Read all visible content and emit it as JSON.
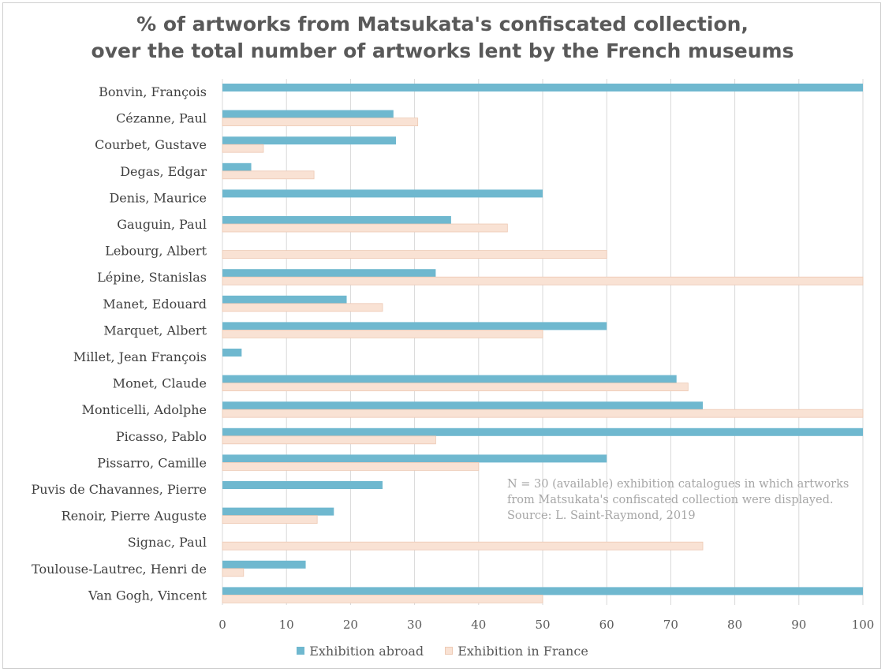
{
  "chart_data": {
    "type": "bar",
    "orientation": "horizontal",
    "title": "% of artworks from Matsukata's confiscated collection, over the total number of artworks lent by the French museums",
    "title_lines": [
      "% of artworks from Matsukata's confiscated collection,",
      "over the total number of artworks lent by the French museums"
    ],
    "categories": [
      "Bonvin, François",
      "Cézanne, Paul",
      "Courbet, Gustave",
      "Degas, Edgar",
      "Denis, Maurice",
      "Gauguin, Paul",
      "Lebourg, Albert",
      "Lépine, Stanislas",
      "Manet, Edouard",
      "Marquet, Albert",
      "Millet, Jean François",
      "Monet, Claude",
      "Monticelli, Adolphe",
      "Picasso, Pablo",
      "Pissarro, Camille",
      "Puvis de Chavannes, Pierre",
      "Renoir, Pierre Auguste",
      "Signac, Paul",
      "Toulouse-Lautrec, Henri de",
      "Van Gogh, Vincent"
    ],
    "series": [
      {
        "name": "Exhibition abroad",
        "color": "#6fb8cf",
        "values": [
          100,
          26.7,
          27.1,
          4.5,
          50,
          35.7,
          0,
          33.3,
          19.4,
          60,
          3,
          70.9,
          75,
          100,
          60,
          25,
          17.4,
          0,
          13,
          100
        ]
      },
      {
        "name": "Exhibition in France",
        "color": "#f9e2d4",
        "values": [
          0,
          30.5,
          6.4,
          14.3,
          0,
          44.5,
          60,
          100,
          25,
          50,
          0,
          72.7,
          100,
          33.3,
          40,
          0,
          14.8,
          75,
          3.3,
          50
        ]
      }
    ],
    "xlim": [
      0,
      100
    ],
    "x_ticks": [
      0,
      10,
      20,
      30,
      40,
      50,
      60,
      70,
      80,
      90,
      100
    ],
    "xlabel": "",
    "ylabel": "",
    "grid": "vertical",
    "legend_position": "bottom",
    "annotation": [
      "N = 30 (available) exhibition catalogues in which artworks",
      "from Matsukata's confiscated collection were displayed.",
      "Source: L. Saint-Raymond, 2019"
    ]
  }
}
